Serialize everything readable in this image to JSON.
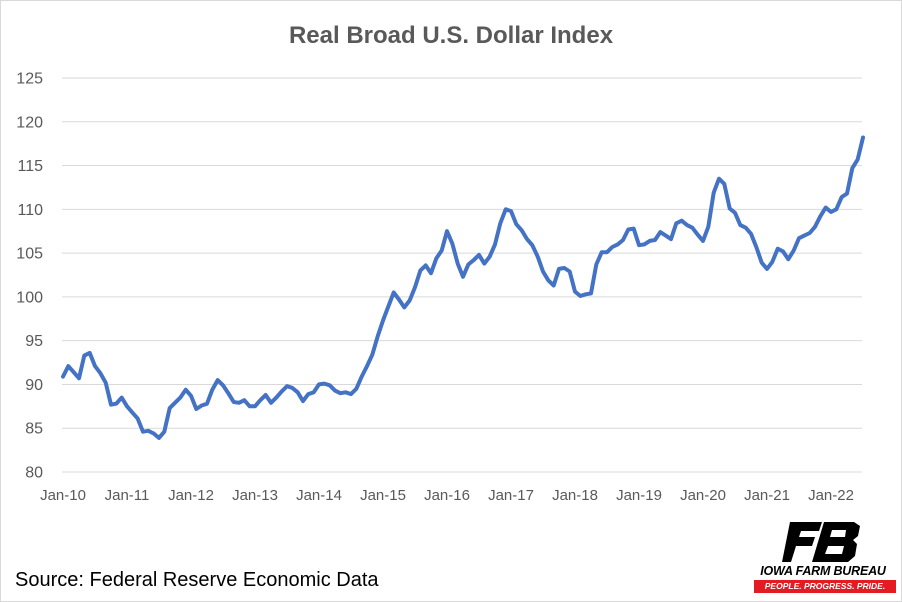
{
  "chart_data": {
    "type": "line",
    "title": "Real Broad U.S. Dollar Index",
    "xlabel": "",
    "ylabel": "",
    "ylim": [
      80,
      125
    ],
    "yticks": [
      80,
      85,
      90,
      95,
      100,
      105,
      110,
      115,
      120,
      125
    ],
    "xtick_labels": [
      "Jan-10",
      "Jan-11",
      "Jan-12",
      "Jan-13",
      "Jan-14",
      "Jan-15",
      "Jan-16",
      "Jan-17",
      "Jan-18",
      "Jan-19",
      "Jan-20",
      "Jan-21",
      "Jan-22"
    ],
    "grid": "horizontal",
    "legend": "none",
    "line_color": "#4472c4",
    "series": [
      {
        "x": [
          "2010-01",
          "2010-02",
          "2010-03",
          "2010-04",
          "2010-05",
          "2010-06",
          "2010-07",
          "2010-08",
          "2010-09",
          "2010-10",
          "2010-11",
          "2010-12",
          "2011-01",
          "2011-02",
          "2011-03",
          "2011-04",
          "2011-05",
          "2011-06",
          "2011-07",
          "2011-08",
          "2011-09",
          "2011-10",
          "2011-11",
          "2011-12",
          "2012-01",
          "2012-02",
          "2012-03",
          "2012-04",
          "2012-05",
          "2012-06",
          "2012-07",
          "2012-08",
          "2012-09",
          "2012-10",
          "2012-11",
          "2012-12",
          "2013-01",
          "2013-02",
          "2013-03",
          "2013-04",
          "2013-05",
          "2013-06",
          "2013-07",
          "2013-08",
          "2013-09",
          "2013-10",
          "2013-11",
          "2013-12",
          "2014-01",
          "2014-02",
          "2014-03",
          "2014-04",
          "2014-05",
          "2014-06",
          "2014-07",
          "2014-08",
          "2014-09",
          "2014-10",
          "2014-11",
          "2014-12",
          "2015-01",
          "2015-02",
          "2015-03",
          "2015-04",
          "2015-05",
          "2015-06",
          "2015-07",
          "2015-08",
          "2015-09",
          "2015-10",
          "2015-11",
          "2015-12",
          "2016-01",
          "2016-02",
          "2016-03",
          "2016-04",
          "2016-05",
          "2016-06",
          "2016-07",
          "2016-08",
          "2016-09",
          "2016-10",
          "2016-11",
          "2016-12",
          "2017-01",
          "2017-02",
          "2017-03",
          "2017-04",
          "2017-05",
          "2017-06",
          "2017-07",
          "2017-08",
          "2017-09",
          "2017-10",
          "2017-11",
          "2017-12",
          "2018-01",
          "2018-02",
          "2018-03",
          "2018-04",
          "2018-05",
          "2018-06",
          "2018-07",
          "2018-08",
          "2018-09",
          "2018-10",
          "2018-11",
          "2018-12",
          "2019-01",
          "2019-02",
          "2019-03",
          "2019-04",
          "2019-05",
          "2019-06",
          "2019-07",
          "2019-08",
          "2019-09",
          "2019-10",
          "2019-11",
          "2019-12",
          "2020-01",
          "2020-02",
          "2020-03",
          "2020-04",
          "2020-05",
          "2020-06",
          "2020-07",
          "2020-08",
          "2020-09",
          "2020-10",
          "2020-11",
          "2020-12",
          "2021-01",
          "2021-02",
          "2021-03",
          "2021-04",
          "2021-05",
          "2021-06",
          "2021-07",
          "2021-08",
          "2021-09",
          "2021-10",
          "2021-11",
          "2021-12",
          "2022-01",
          "2022-02",
          "2022-03",
          "2022-04",
          "2022-05",
          "2022-06",
          "2022-07"
        ],
        "values": [
          90.9,
          92.1,
          91.4,
          90.7,
          93.3,
          93.6,
          92.1,
          91.3,
          90.2,
          87.7,
          87.8,
          88.5,
          87.5,
          86.8,
          86.1,
          84.6,
          84.7,
          84.4,
          83.9,
          84.6,
          87.3,
          87.9,
          88.5,
          89.4,
          88.7,
          87.2,
          87.6,
          87.8,
          89.4,
          90.5,
          89.9,
          89.0,
          88.0,
          87.9,
          88.2,
          87.5,
          87.5,
          88.2,
          88.8,
          87.9,
          88.5,
          89.2,
          89.8,
          89.6,
          89.1,
          88.1,
          88.9,
          89.1,
          90.0,
          90.1,
          89.9,
          89.3,
          89.0,
          89.1,
          88.9,
          89.5,
          90.9,
          92.1,
          93.4,
          95.5,
          97.3,
          98.9,
          100.5,
          99.7,
          98.8,
          99.6,
          101.1,
          103.0,
          103.6,
          102.7,
          104.4,
          105.3,
          107.5,
          106.1,
          103.8,
          102.3,
          103.7,
          104.2,
          104.8,
          103.8,
          104.6,
          106.0,
          108.4,
          110.0,
          109.8,
          108.3,
          107.6,
          106.6,
          105.9,
          104.6,
          102.9,
          101.9,
          101.3,
          103.2,
          103.3,
          102.9,
          100.6,
          100.1,
          100.3,
          100.4,
          103.7,
          105.1,
          105.1,
          105.7,
          106.0,
          106.5,
          107.7,
          107.8,
          105.9,
          106.0,
          106.4,
          106.5,
          107.4,
          107.0,
          106.6,
          108.4,
          108.7,
          108.2,
          107.9,
          107.1,
          106.4,
          108.0,
          111.9,
          113.5,
          112.9,
          110.1,
          109.6,
          108.2,
          107.9,
          107.2,
          105.7,
          103.9,
          103.2,
          104.0,
          105.5,
          105.2,
          104.3,
          105.3,
          106.7,
          107.0,
          107.3,
          108.0,
          109.2,
          110.2,
          109.7,
          110.0,
          111.4,
          111.8,
          114.7,
          115.7,
          118.2
        ]
      }
    ]
  },
  "footer": {
    "source": "Source: Federal Reserve Economic Data"
  },
  "logo": {
    "name": "IOWA FARM BUREAU",
    "tagline": "PEOPLE. PROGRESS. PRIDE.",
    "mark_text": "FB",
    "colors": {
      "mark": "#000000",
      "accent": "#e31b23"
    }
  }
}
